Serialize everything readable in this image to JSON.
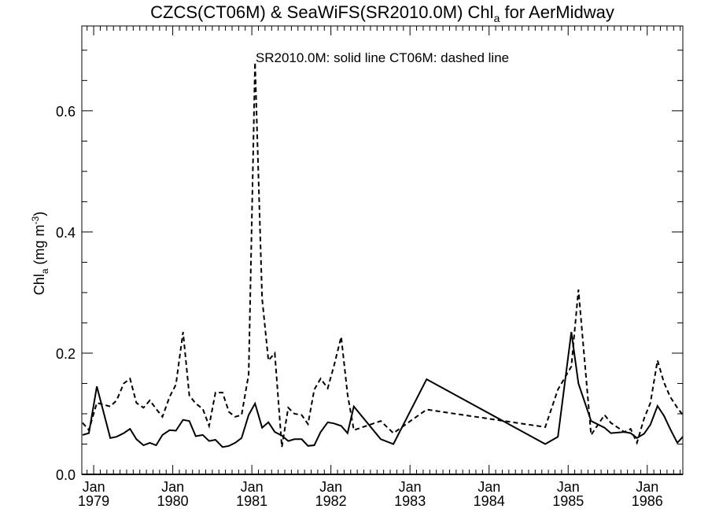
{
  "chart_data": {
    "type": "line",
    "title": {
      "main": "CZCS(CT06M) & SeaWiFS(SR2010.0M)  Chl",
      "sub": "a",
      "rest": " for AerMidway"
    },
    "annotation": "SR2010.0M: solid line   CT06M: dashed line",
    "ylabel": {
      "main": "Chl",
      "sub": "a",
      "units_pre": " (mg m",
      "units_sup": "-3",
      "units_post": ")"
    },
    "ylim": [
      0.0,
      0.74
    ],
    "yticks": [
      "0.0",
      "0.2",
      "0.4",
      "0.6"
    ],
    "xlim": [
      1978.85,
      1986.45
    ],
    "xticks": [
      {
        "month": "Jan",
        "year": "1979"
      },
      {
        "month": "Jan",
        "year": "1980"
      },
      {
        "month": "Jan",
        "year": "1981"
      },
      {
        "month": "Jan",
        "year": "1982"
      },
      {
        "month": "Jan",
        "year": "1983"
      },
      {
        "month": "Jan",
        "year": "1984"
      },
      {
        "month": "Jan",
        "year": "1985"
      },
      {
        "month": "Jan",
        "year": "1986"
      }
    ],
    "grid": false,
    "series": [
      {
        "name": "SR2010.0M",
        "style": "solid",
        "color": "#000000",
        "x": [
          1978.86,
          1978.94,
          1979.04,
          1979.21,
          1979.29,
          1979.38,
          1979.46,
          1979.54,
          1979.63,
          1979.71,
          1979.79,
          1979.87,
          1979.96,
          1980.04,
          1980.13,
          1980.21,
          1980.29,
          1980.38,
          1980.46,
          1980.54,
          1980.63,
          1980.71,
          1980.79,
          1980.87,
          1980.96,
          1981.04,
          1981.13,
          1981.21,
          1981.29,
          1981.38,
          1981.46,
          1981.54,
          1981.63,
          1981.71,
          1981.79,
          1981.87,
          1981.96,
          1982.04,
          1982.13,
          1982.21,
          1982.29,
          1982.63,
          1982.79,
          1983.21,
          1984.71,
          1984.87,
          1985.04,
          1985.13,
          1985.29,
          1985.46,
          1985.54,
          1985.71,
          1985.79,
          1985.87,
          1985.96,
          1986.04,
          1986.13,
          1986.21,
          1986.29,
          1986.38,
          1986.45
        ],
        "y": [
          0.065,
          0.068,
          0.145,
          0.06,
          0.062,
          0.068,
          0.075,
          0.058,
          0.048,
          0.052,
          0.048,
          0.065,
          0.073,
          0.072,
          0.09,
          0.088,
          0.063,
          0.065,
          0.055,
          0.057,
          0.045,
          0.047,
          0.052,
          0.06,
          0.098,
          0.117,
          0.077,
          0.086,
          0.07,
          0.064,
          0.055,
          0.058,
          0.058,
          0.047,
          0.048,
          0.07,
          0.086,
          0.084,
          0.08,
          0.068,
          0.112,
          0.058,
          0.05,
          0.157,
          0.05,
          0.062,
          0.235,
          0.15,
          0.088,
          0.077,
          0.068,
          0.07,
          0.068,
          0.06,
          0.067,
          0.082,
          0.113,
          0.097,
          0.075,
          0.052,
          0.062
        ]
      },
      {
        "name": "CT06M",
        "style": "dashed",
        "color": "#000000",
        "x": [
          1978.86,
          1978.94,
          1979.04,
          1979.21,
          1979.29,
          1979.38,
          1979.46,
          1979.54,
          1979.63,
          1979.71,
          1979.79,
          1979.87,
          1979.96,
          1980.04,
          1980.13,
          1980.21,
          1980.29,
          1980.38,
          1980.46,
          1980.54,
          1980.63,
          1980.71,
          1980.79,
          1980.87,
          1980.96,
          1981.04,
          1981.13,
          1981.21,
          1981.29,
          1981.38,
          1981.46,
          1981.54,
          1981.63,
          1981.71,
          1981.79,
          1981.87,
          1981.96,
          1982.04,
          1982.13,
          1982.21,
          1982.29,
          1982.63,
          1982.79,
          1983.21,
          1984.71,
          1984.87,
          1985.04,
          1985.13,
          1985.29,
          1985.46,
          1985.54,
          1985.71,
          1985.79,
          1985.87,
          1985.96,
          1986.04,
          1986.13,
          1986.21,
          1986.29,
          1986.38,
          1986.45
        ],
        "y": [
          0.085,
          0.073,
          0.118,
          0.112,
          0.122,
          0.15,
          0.158,
          0.118,
          0.11,
          0.122,
          0.108,
          0.095,
          0.128,
          0.148,
          0.235,
          0.13,
          0.117,
          0.108,
          0.08,
          0.135,
          0.135,
          0.103,
          0.095,
          0.098,
          0.165,
          0.68,
          0.29,
          0.188,
          0.2,
          0.045,
          0.11,
          0.1,
          0.098,
          0.083,
          0.14,
          0.158,
          0.142,
          0.18,
          0.227,
          0.132,
          0.073,
          0.088,
          0.068,
          0.107,
          0.078,
          0.14,
          0.178,
          0.305,
          0.065,
          0.098,
          0.085,
          0.07,
          0.075,
          0.052,
          0.092,
          0.118,
          0.188,
          0.152,
          0.128,
          0.11,
          0.098
        ]
      }
    ]
  }
}
